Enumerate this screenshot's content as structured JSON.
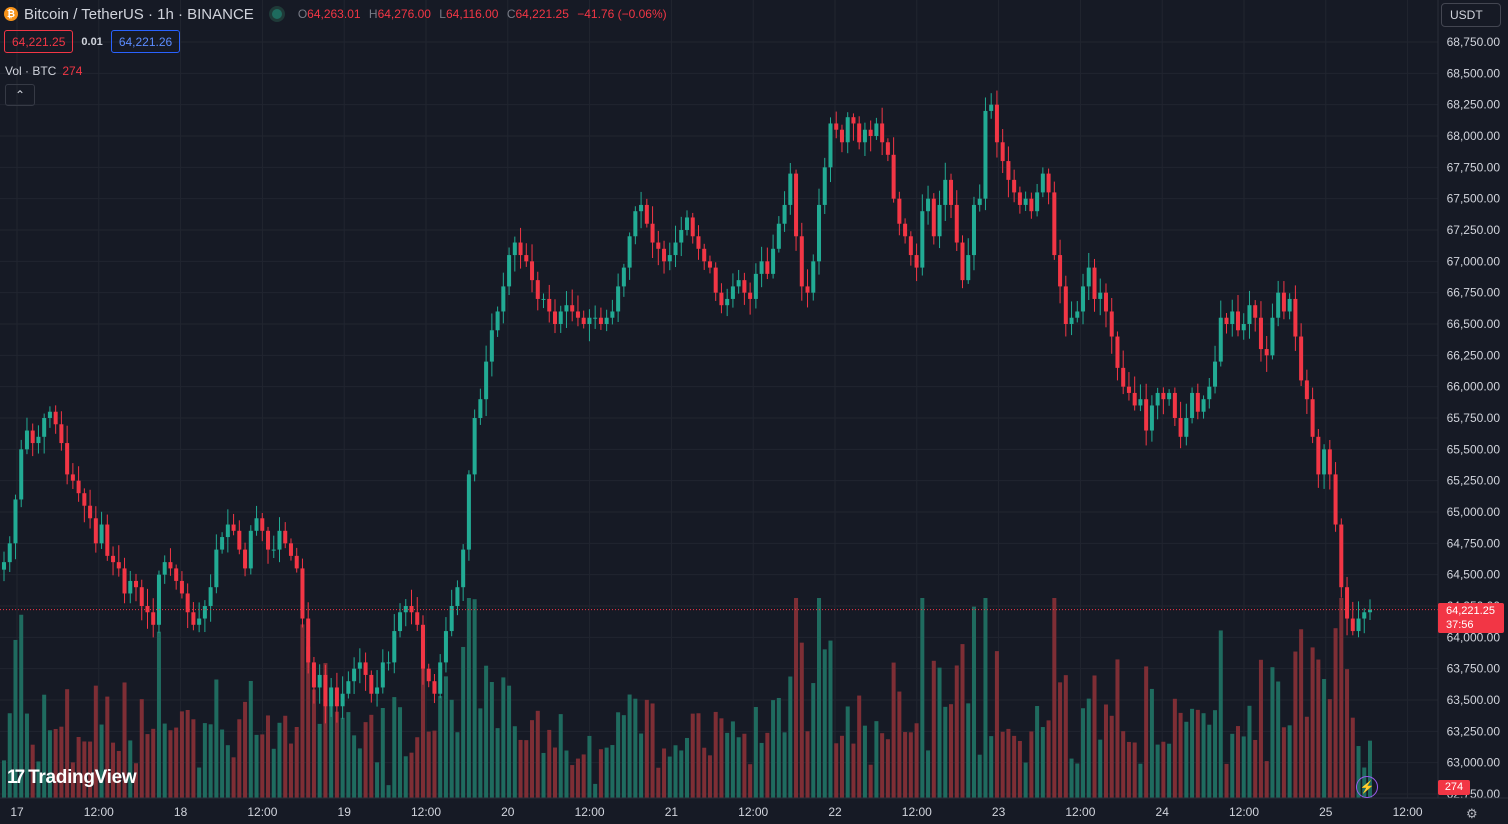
{
  "header": {
    "symbol": "Bitcoin / TetherUS · 1h · BINANCE",
    "coin_glyph": "₿",
    "ohlc": {
      "o_label": "O",
      "o": "64,263.01",
      "h_label": "H",
      "h": "64,276.00",
      "l_label": "L",
      "l": "64,116.00",
      "c_label": "C",
      "c": "64,221.25",
      "change": "−41.76 (−0.06%)"
    },
    "sell_price": "64,221.25",
    "spread": "0.01",
    "buy_price": "64,221.26",
    "volume_label": "Vol · BTC",
    "volume_value": "274",
    "collapse_glyph": "⌃"
  },
  "currency": "USDT",
  "last_price_tag": {
    "price": "64,221.25",
    "countdown": "37:56"
  },
  "last_volume_tag": "274",
  "logo": {
    "mark": "17",
    "text": "TradingView"
  },
  "icons": {
    "bolt": "⚡",
    "gear": "⚙"
  },
  "colors": {
    "up": "#22ab94",
    "down": "#f23645",
    "vol_up": "#1f6b5f",
    "vol_down": "#7e2e35",
    "background": "#161a25",
    "grid": "#212530"
  },
  "chart_data": {
    "type": "candlestick",
    "title": "Bitcoin / TetherUS · 1h · BINANCE",
    "interval": "1h",
    "y_ticks": [
      "68,750.00",
      "68,500.00",
      "68,250.00",
      "68,000.00",
      "67,750.00",
      "67,500.00",
      "67,250.00",
      "67,000.00",
      "66,750.00",
      "66,500.00",
      "66,250.00",
      "66,000.00",
      "65,750.00",
      "65,500.00",
      "65,250.00",
      "65,000.00",
      "64,750.00",
      "64,500.00",
      "64,250.00",
      "64,000.00",
      "63,750.00",
      "63,500.00",
      "63,250.00",
      "63,000.00",
      "62,750.00"
    ],
    "ylim": [
      62750,
      68750
    ],
    "x_ticks": [
      "17",
      "12:00",
      "18",
      "12:00",
      "19",
      "12:00",
      "20",
      "12:00",
      "21",
      "12:00",
      "22",
      "12:00",
      "23",
      "12:00",
      "24",
      "12:00",
      "25",
      "12:00"
    ],
    "grid": true,
    "last_close": 64221.25,
    "ohlc_closes": [
      64600,
      64750,
      65100,
      65500,
      65650,
      65550,
      65600,
      65750,
      65800,
      65700,
      65550,
      65300,
      65250,
      65150,
      65050,
      64950,
      64750,
      64900,
      64650,
      64600,
      64550,
      64350,
      64450,
      64400,
      64250,
      64200,
      64100,
      64500,
      64600,
      64550,
      64450,
      64350,
      64200,
      64100,
      64150,
      64250,
      64400,
      64700,
      64800,
      64900,
      64850,
      64700,
      64550,
      64850,
      64950,
      64850,
      64700,
      64700,
      64850,
      64750,
      64650,
      64550,
      64150,
      63800,
      63600,
      63700,
      63450,
      63600,
      63450,
      63550,
      63650,
      63750,
      63800,
      63700,
      63550,
      63600,
      63800,
      63800,
      64050,
      64200,
      64250,
      64200,
      64100,
      63750,
      63650,
      63550,
      63800,
      64050,
      64250,
      64400,
      64700,
      65300,
      65750,
      65900,
      66200,
      66450,
      66600,
      66800,
      67050,
      67150,
      67050,
      67000,
      66850,
      66700,
      66700,
      66600,
      66500,
      66600,
      66650,
      66600,
      66550,
      66500,
      66550,
      66550,
      66500,
      66550,
      66600,
      66800,
      66950,
      67200,
      67400,
      67450,
      67300,
      67150,
      67100,
      67000,
      67050,
      67150,
      67250,
      67350,
      67200,
      67100,
      67000,
      66950,
      66750,
      66650,
      66700,
      66800,
      66850,
      66750,
      66700,
      66900,
      67000,
      66900,
      67100,
      67300,
      67450,
      67700,
      67200,
      66800,
      66750,
      67000,
      67450,
      67750,
      68100,
      68050,
      67950,
      68150,
      68100,
      67950,
      68050,
      68000,
      68100,
      67950,
      67850,
      67500,
      67300,
      67200,
      67050,
      66950,
      67400,
      67500,
      67200,
      67450,
      67650,
      67450,
      67150,
      66850,
      67050,
      67450,
      67500,
      68200,
      68250,
      67950,
      67800,
      67650,
      67550,
      67450,
      67500,
      67400,
      67550,
      67700,
      67550,
      67050,
      66800,
      66500,
      66550,
      66600,
      66800,
      66950,
      66700,
      66750,
      66600,
      66400,
      66150,
      66000,
      65950,
      65850,
      65900,
      65650,
      65850,
      65950,
      65900,
      65950,
      65750,
      65600,
      65750,
      65950,
      65800,
      65900,
      66000,
      66200,
      66550,
      66500,
      66600,
      66450,
      66500,
      66650,
      66550,
      66300,
      66250,
      66550,
      66750,
      66600,
      66700,
      66400,
      66050,
      65900,
      65600,
      65300,
      65500,
      65300,
      64900,
      64400,
      64150,
      64050,
      64150,
      64200,
      64221
    ]
  }
}
